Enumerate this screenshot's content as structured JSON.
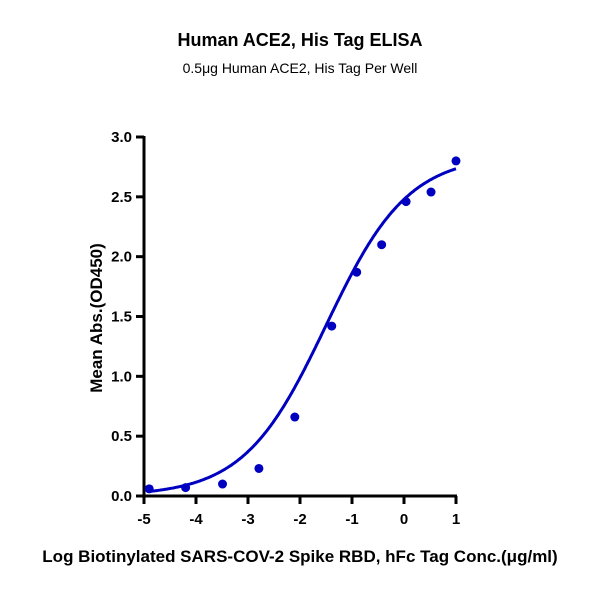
{
  "chart_data": {
    "type": "scatter",
    "title": "Human ACE2, His Tag ELISA",
    "subtitle": "0.5μg Human ACE2, His Tag Per Well",
    "xlabel": "Log Biotinylated SARS-COV-2 Spike RBD, hFc Tag Conc.(μg/ml)",
    "ylabel": "Mean Abs.(OD450)",
    "xlim": [
      -5,
      1
    ],
    "ylim": [
      0,
      3.0
    ],
    "xticks": [
      "-5",
      "-4",
      "-3",
      "-2",
      "-1",
      "0",
      "1"
    ],
    "yticks": [
      "0.0",
      "0.5",
      "1.0",
      "1.5",
      "2.0",
      "2.5",
      "3.0"
    ],
    "grid": false,
    "color": "#0000c0",
    "x": [
      -4.9,
      -4.2,
      -3.49,
      -2.79,
      -2.1,
      -1.39,
      -0.91,
      -0.43,
      0.04,
      0.52,
      1.0
    ],
    "y": [
      0.06,
      0.07,
      0.1,
      0.23,
      0.66,
      1.42,
      1.87,
      2.1,
      2.46,
      2.54,
      2.8
    ],
    "fit": {
      "model": "4PL",
      "bottom": 0.0,
      "top": 2.85,
      "logEC50": -1.5,
      "hill": 0.55
    }
  }
}
